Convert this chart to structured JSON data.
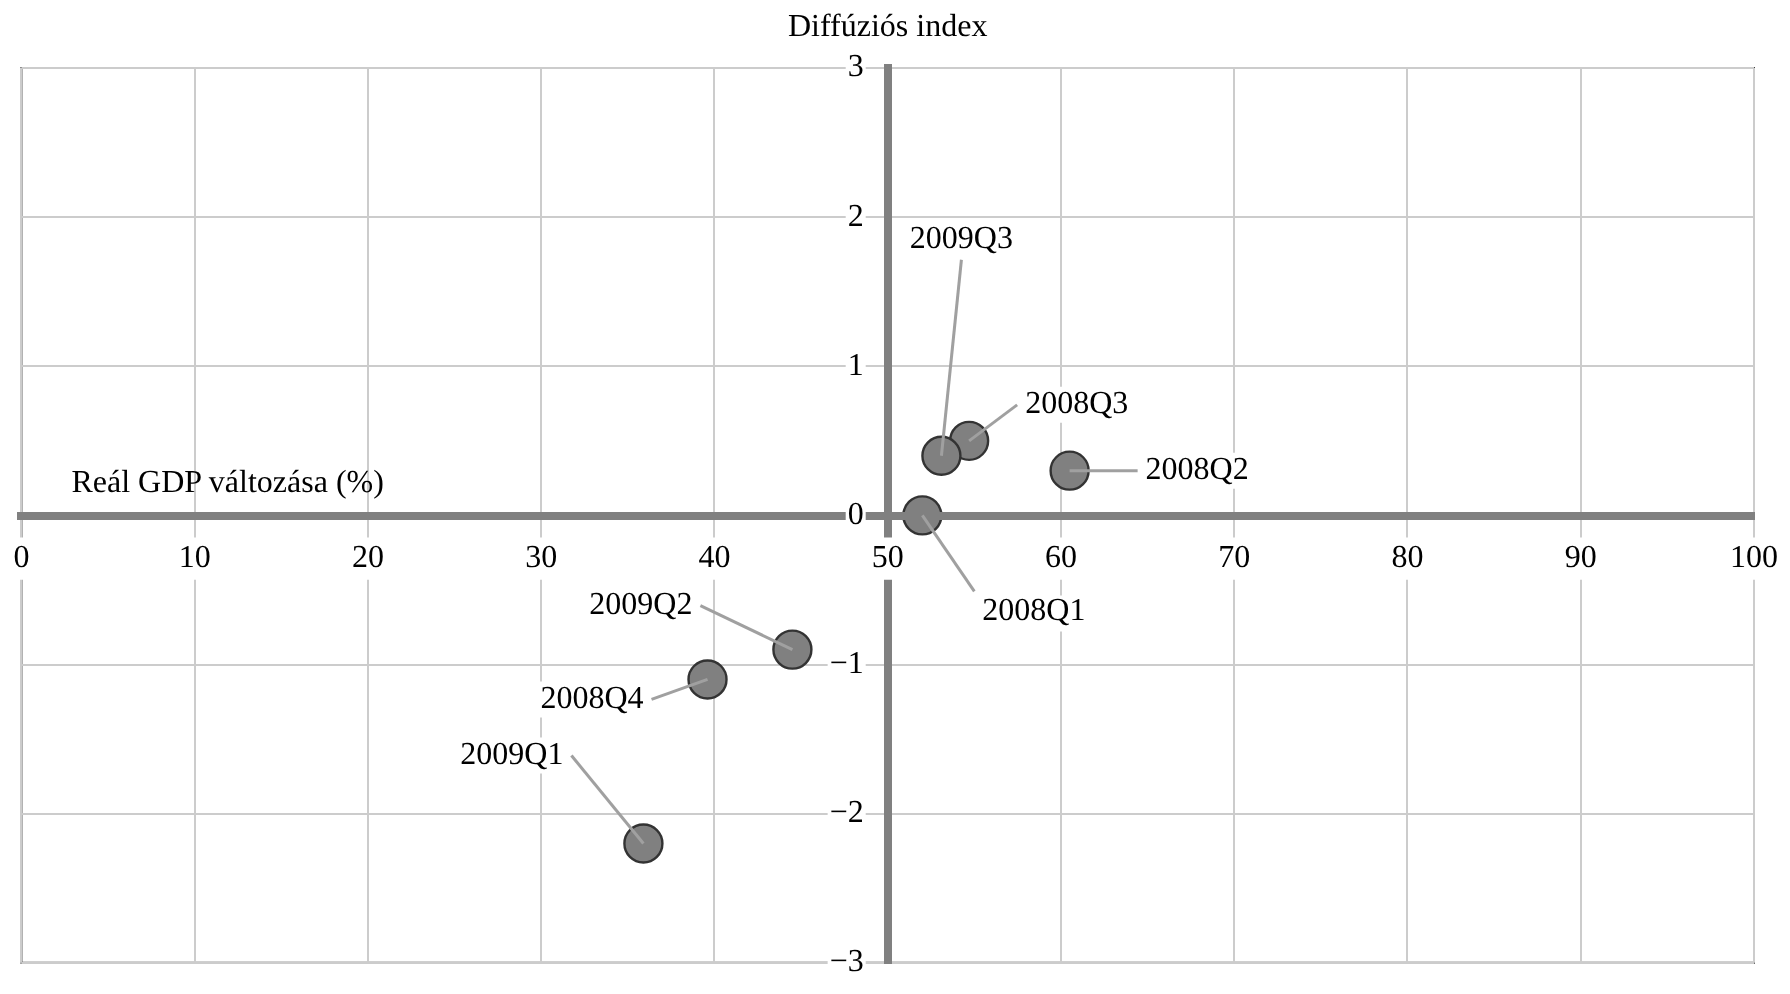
{
  "chart_data": {
    "type": "scatter",
    "xlabel": "Reál GDP változása (%)",
    "ylabel": "Diffúziós index",
    "x": [
      52,
      60.5,
      54.7,
      39.6,
      35.9,
      44.5,
      53.1
    ],
    "series": [
      {
        "color": "#808080",
        "values": [
          0,
          0.3,
          0.5,
          -1.1,
          -2.2,
          -0.9,
          0.4
        ]
      }
    ],
    "annotations": [
      {
        "text": "2008Q1",
        "x": 52,
        "y": 0
      },
      {
        "text": "2008Q2",
        "x": 60.5,
        "y": 0.3
      },
      {
        "text": "2008Q3",
        "x": 54.7,
        "y": 0.5
      },
      {
        "text": "2008Q4",
        "x": 39.6,
        "y": -1.1
      },
      {
        "text": "2009Q1",
        "x": 35.9,
        "y": -2.2
      },
      {
        "text": "2009Q2",
        "x": 44.5,
        "y": -0.9
      },
      {
        "text": "2009Q3",
        "x": 53.1,
        "y": 0.4
      }
    ],
    "xlim": [
      0,
      100
    ],
    "xticks": [
      0,
      10,
      20,
      30,
      40,
      50,
      60,
      70,
      80,
      90,
      100
    ],
    "ylim": [
      -3,
      3
    ],
    "yticks": [
      -3,
      -2,
      -1,
      0,
      1,
      2,
      3
    ],
    "grid": true,
    "marker": "circle",
    "legend": false
  }
}
